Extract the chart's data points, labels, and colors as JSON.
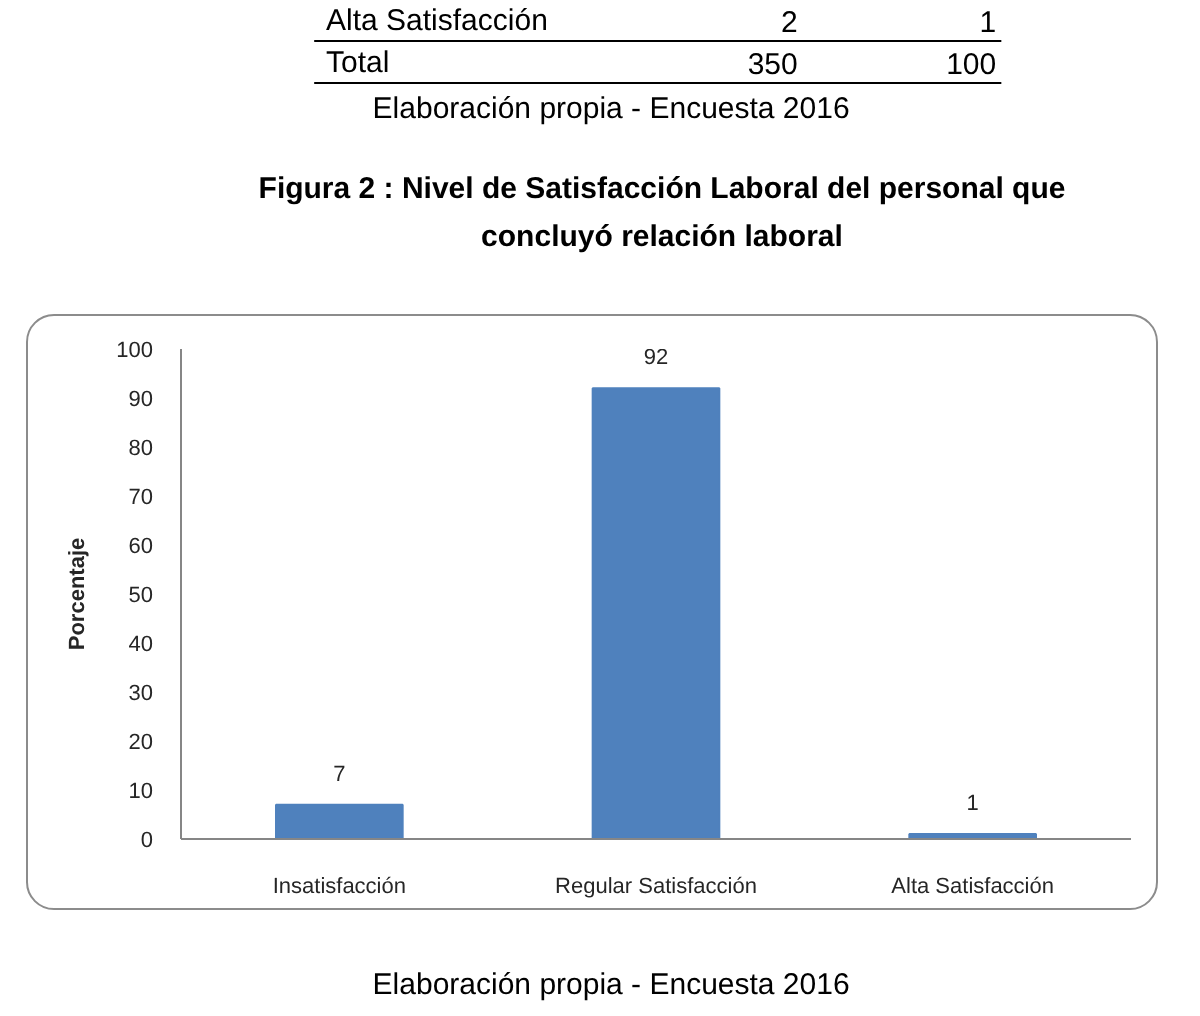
{
  "chart_data": {
    "type": "bar",
    "title": "Figura 2 : Nivel de Satisfacción Laboral del personal que concluyó relación laboral",
    "ylabel": "Porcentaje",
    "categories": [
      "Insatisfacción",
      "Regular Satisfacción",
      "Alta Satisfacción"
    ],
    "values": [
      7,
      92,
      1
    ],
    "color": "#4f81bd",
    "ylim": [
      0,
      100
    ],
    "yticks": [
      0,
      10,
      20,
      30,
      40,
      50,
      60,
      70,
      80,
      90,
      100
    ],
    "data_labels": true,
    "grid": false,
    "annotations": [
      "Alta Satisfacción",
      "2",
      "1",
      "Total",
      "350",
      "100",
      "Elaboración propia - Encuesta 2016",
      "Elaboración propia - Encuesta 2016"
    ]
  }
}
